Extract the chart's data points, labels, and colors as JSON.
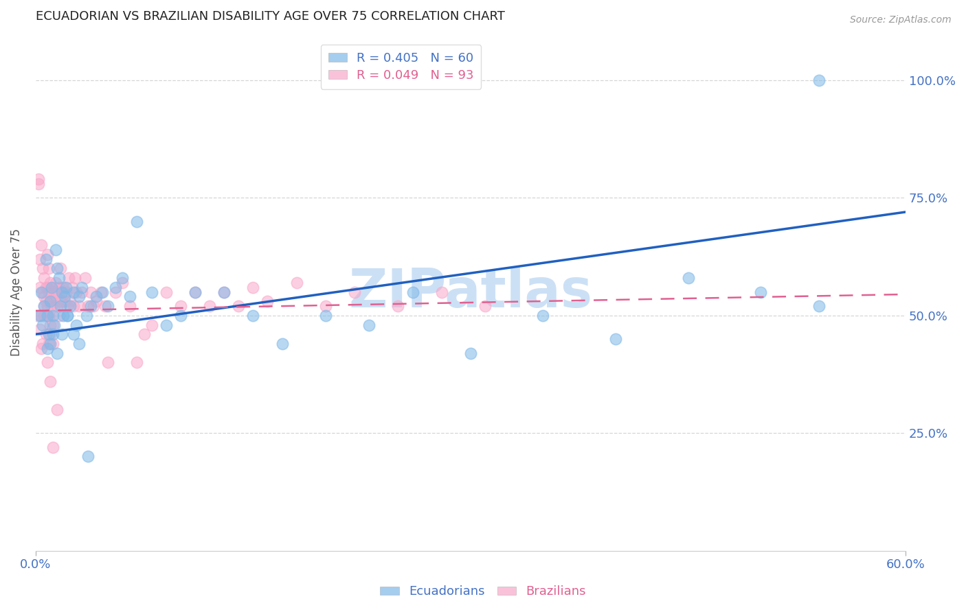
{
  "title": "ECUADORIAN VS BRAZILIAN DISABILITY AGE OVER 75 CORRELATION CHART",
  "source": "Source: ZipAtlas.com",
  "ylabel": "Disability Age Over 75",
  "legend_label1": "Ecuadorians",
  "legend_label2": "Brazilians",
  "ecu_color": "#7fb8e8",
  "bra_color": "#f9a8c9",
  "ecu_line_color": "#2060c0",
  "bra_line_color": "#e06090",
  "ecuadorians_x": [
    0.003,
    0.004,
    0.005,
    0.006,
    0.007,
    0.008,
    0.009,
    0.01,
    0.011,
    0.012,
    0.013,
    0.014,
    0.015,
    0.016,
    0.017,
    0.018,
    0.019,
    0.02,
    0.021,
    0.022,
    0.024,
    0.026,
    0.028,
    0.03,
    0.032,
    0.035,
    0.038,
    0.042,
    0.046,
    0.05,
    0.055,
    0.06,
    0.065,
    0.07,
    0.08,
    0.09,
    0.1,
    0.11,
    0.13,
    0.15,
    0.17,
    0.2,
    0.23,
    0.26,
    0.3,
    0.35,
    0.4,
    0.45,
    0.5,
    0.54,
    0.008,
    0.01,
    0.012,
    0.015,
    0.018,
    0.022,
    0.026,
    0.03,
    0.036,
    0.54
  ],
  "ecuadorians_y": [
    0.5,
    0.55,
    0.48,
    0.52,
    0.62,
    0.5,
    0.46,
    0.53,
    0.56,
    0.5,
    0.48,
    0.64,
    0.6,
    0.58,
    0.52,
    0.55,
    0.5,
    0.54,
    0.56,
    0.5,
    0.52,
    0.55,
    0.48,
    0.54,
    0.56,
    0.5,
    0.52,
    0.54,
    0.55,
    0.52,
    0.56,
    0.58,
    0.54,
    0.7,
    0.55,
    0.48,
    0.5,
    0.55,
    0.55,
    0.5,
    0.44,
    0.5,
    0.48,
    0.55,
    0.42,
    0.5,
    0.45,
    0.58,
    0.55,
    1.0,
    0.43,
    0.44,
    0.46,
    0.42,
    0.46,
    0.5,
    0.46,
    0.44,
    0.2,
    0.52
  ],
  "brazilians_x": [
    0.001,
    0.002,
    0.002,
    0.003,
    0.003,
    0.004,
    0.004,
    0.005,
    0.005,
    0.006,
    0.006,
    0.006,
    0.007,
    0.007,
    0.007,
    0.008,
    0.008,
    0.008,
    0.009,
    0.009,
    0.009,
    0.01,
    0.01,
    0.01,
    0.011,
    0.011,
    0.012,
    0.012,
    0.013,
    0.013,
    0.014,
    0.014,
    0.015,
    0.015,
    0.016,
    0.016,
    0.017,
    0.017,
    0.018,
    0.018,
    0.019,
    0.019,
    0.02,
    0.021,
    0.022,
    0.023,
    0.024,
    0.025,
    0.026,
    0.027,
    0.028,
    0.03,
    0.032,
    0.034,
    0.036,
    0.038,
    0.04,
    0.042,
    0.045,
    0.048,
    0.05,
    0.055,
    0.06,
    0.065,
    0.07,
    0.075,
    0.08,
    0.09,
    0.1,
    0.11,
    0.12,
    0.13,
    0.14,
    0.15,
    0.16,
    0.18,
    0.2,
    0.22,
    0.25,
    0.28,
    0.31,
    0.003,
    0.004,
    0.005,
    0.006,
    0.007,
    0.008,
    0.009,
    0.01,
    0.012,
    0.015,
    0.008,
    0.01,
    0.012
  ],
  "brazilians_y": [
    0.5,
    0.78,
    0.79,
    0.56,
    0.62,
    0.5,
    0.65,
    0.55,
    0.6,
    0.52,
    0.58,
    0.54,
    0.5,
    0.56,
    0.53,
    0.5,
    0.56,
    0.63,
    0.5,
    0.55,
    0.6,
    0.48,
    0.53,
    0.57,
    0.55,
    0.52,
    0.54,
    0.48,
    0.56,
    0.52,
    0.57,
    0.54,
    0.55,
    0.52,
    0.56,
    0.5,
    0.53,
    0.6,
    0.56,
    0.53,
    0.55,
    0.56,
    0.53,
    0.55,
    0.52,
    0.58,
    0.53,
    0.56,
    0.52,
    0.58,
    0.55,
    0.52,
    0.55,
    0.58,
    0.52,
    0.55,
    0.52,
    0.53,
    0.55,
    0.52,
    0.4,
    0.55,
    0.57,
    0.52,
    0.4,
    0.46,
    0.48,
    0.55,
    0.52,
    0.55,
    0.52,
    0.55,
    0.52,
    0.56,
    0.53,
    0.57,
    0.52,
    0.55,
    0.52,
    0.55,
    0.52,
    0.47,
    0.43,
    0.44,
    0.5,
    0.46,
    0.52,
    0.44,
    0.46,
    0.44,
    0.3,
    0.4,
    0.36,
    0.22
  ],
  "xlim": [
    0.0,
    0.6
  ],
  "ylim": [
    0.0,
    1.1
  ],
  "y_ticks": [
    0.25,
    0.5,
    0.75,
    1.0
  ],
  "y_tick_labels": [
    "25.0%",
    "50.0%",
    "75.0%",
    "100.0%"
  ],
  "x_ticks": [
    0.0,
    0.6
  ],
  "x_tick_labels": [
    "0.0%",
    "60.0%"
  ],
  "background_color": "#ffffff",
  "grid_color": "#cccccc",
  "title_color": "#222222",
  "axis_color": "#4472c4",
  "watermark_text": "ZIPatlas",
  "watermark_color": "#cce0f5"
}
